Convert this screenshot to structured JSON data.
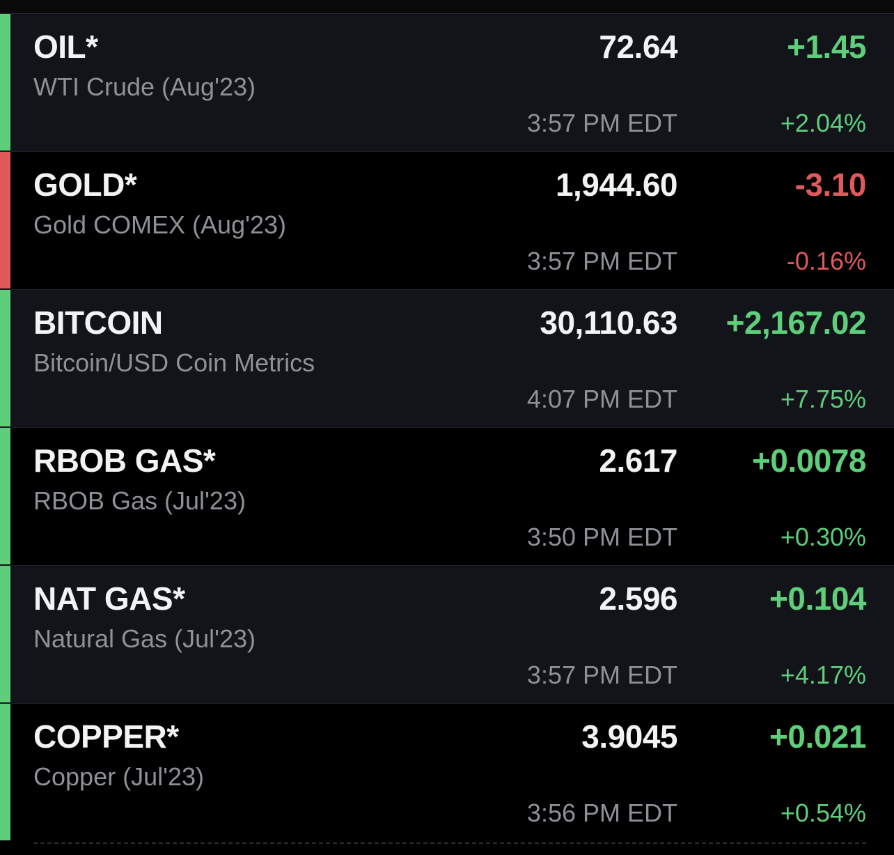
{
  "colors": {
    "positive": "#5fce7b",
    "negative": "#e0595b",
    "row_alt": "#121419",
    "row_base": "#000000"
  },
  "quotes": [
    {
      "symbol": "OIL*",
      "name": "WTI Crude (Aug'23)",
      "price": "72.64",
      "time": "3:57 PM EDT",
      "change": "+1.45",
      "change_pct": "+2.04%",
      "direction": "up"
    },
    {
      "symbol": "GOLD*",
      "name": "Gold COMEX (Aug'23)",
      "price": "1,944.60",
      "time": "3:57 PM EDT",
      "change": "-3.10",
      "change_pct": "-0.16%",
      "direction": "down"
    },
    {
      "symbol": "BITCOIN",
      "name": "Bitcoin/USD Coin Metrics",
      "price": "30,110.63",
      "time": "4:07 PM EDT",
      "change": "+2,167.02",
      "change_pct": "+7.75%",
      "direction": "up"
    },
    {
      "symbol": "RBOB GAS*",
      "name": "RBOB Gas (Jul'23)",
      "price": "2.617",
      "time": "3:50 PM EDT",
      "change": "+0.0078",
      "change_pct": "+0.30%",
      "direction": "up"
    },
    {
      "symbol": "NAT GAS*",
      "name": "Natural Gas (Jul'23)",
      "price": "2.596",
      "time": "3:57 PM EDT",
      "change": "+0.104",
      "change_pct": "+4.17%",
      "direction": "up"
    },
    {
      "symbol": "COPPER*",
      "name": "Copper (Jul'23)",
      "price": "3.9045",
      "time": "3:56 PM EDT",
      "change": "+0.021",
      "change_pct": "+0.54%",
      "direction": "up"
    }
  ]
}
